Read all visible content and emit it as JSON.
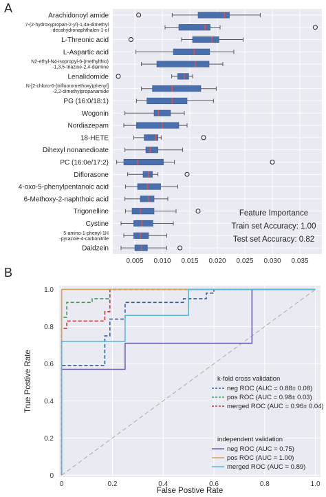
{
  "figure": {
    "panel_a_letter": "A",
    "panel_b_letter": "B"
  },
  "chart_data": [
    {
      "type": "box",
      "panel": "A",
      "orientation": "horizontal",
      "annotation_lines": [
        "Feature Importance",
        "Train set Accuracy: 1.00",
        "Test set Accuracy: 0.82"
      ],
      "xlim": [
        0.001,
        0.039
      ],
      "xticks": [
        0.005,
        0.01,
        0.015,
        0.02,
        0.025,
        0.03,
        0.035
      ],
      "xtick_labels": [
        "0.005",
        "0.010",
        "0.015",
        "0.020",
        "0.025",
        "0.030",
        "0.035"
      ],
      "grid": true,
      "box_color": "#4a6fad",
      "median_color": "#d9534f",
      "categories": [
        {
          "label": [
            "Arachidonoyl amide"
          ],
          "wmin": 0.0118,
          "q1": 0.0165,
          "median": 0.0213,
          "q3": 0.0222,
          "wmax": 0.0278,
          "outliers": [
            0.0057
          ]
        },
        {
          "label": [
            "7-(2-hydroxypropan-2-yl)-1,4a-dimethyl",
            "-decahydronaphthalen-1-ol"
          ],
          "wmin": 0.0105,
          "q1": 0.013,
          "median": 0.0178,
          "q3": 0.0187,
          "wmax": 0.0205,
          "outliers": [
            0.0378
          ]
        },
        {
          "label": [
            "L-Threonic acid"
          ],
          "wmin": 0.0135,
          "q1": 0.0155,
          "median": 0.019,
          "q3": 0.0203,
          "wmax": 0.0247,
          "outliers": [
            0.0043
          ]
        },
        {
          "label": [
            "L-Aspartic acid"
          ],
          "wmin": 0.0052,
          "q1": 0.012,
          "median": 0.0158,
          "q3": 0.0186,
          "wmax": 0.023,
          "outliers": []
        },
        {
          "label": [
            "N2-ethyl-N4-isopropyl-6-(methylthio)",
            "-1,3,5-triazine-2,4-diamine"
          ],
          "wmin": 0.0062,
          "q1": 0.009,
          "median": 0.016,
          "q3": 0.0185,
          "wmax": 0.021,
          "outliers": []
        },
        {
          "label": [
            "Lenalidomide"
          ],
          "wmin": 0.0117,
          "q1": 0.0128,
          "median": 0.014,
          "q3": 0.0148,
          "wmax": 0.0155,
          "outliers": [
            0.002
          ]
        },
        {
          "label": [
            "N-[2-chloro-6-(trifluoromethoxy)phenyl]",
            "-2,2-dimethylpropanamide"
          ],
          "wmin": 0.0062,
          "q1": 0.0082,
          "median": 0.0118,
          "q3": 0.017,
          "wmax": 0.0198,
          "outliers": []
        },
        {
          "label": [
            "PG (16:0/18:1)"
          ],
          "wmin": 0.0053,
          "q1": 0.0072,
          "median": 0.0118,
          "q3": 0.0145,
          "wmax": 0.0193,
          "outliers": []
        },
        {
          "label": [
            "Wogonin"
          ],
          "wmin": 0.0032,
          "q1": 0.0085,
          "median": 0.0093,
          "q3": 0.0115,
          "wmax": 0.014,
          "outliers": []
        },
        {
          "label": [
            "Nordiazepam"
          ],
          "wmin": 0.003,
          "q1": 0.0053,
          "median": 0.01,
          "q3": 0.013,
          "wmax": 0.0145,
          "outliers": []
        },
        {
          "label": [
            "18-HETE"
          ],
          "wmin": 0.0048,
          "q1": 0.0067,
          "median": 0.0088,
          "q3": 0.0092,
          "wmax": 0.0098,
          "outliers": [
            0.0175
          ]
        },
        {
          "label": [
            "Dihexyl nonanedioate"
          ],
          "wmin": 0.0032,
          "q1": 0.007,
          "median": 0.0078,
          "q3": 0.0092,
          "wmax": 0.0137,
          "outliers": []
        },
        {
          "label": [
            "PC (16:0e/17:2)"
          ],
          "wmin": 0.0017,
          "q1": 0.003,
          "median": 0.0055,
          "q3": 0.0102,
          "wmax": 0.0122,
          "outliers": [
            0.03
          ]
        },
        {
          "label": [
            "Diflorasone"
          ],
          "wmin": 0.0037,
          "q1": 0.0065,
          "median": 0.0075,
          "q3": 0.0082,
          "wmax": 0.0092,
          "outliers": [
            0.0145
          ]
        },
        {
          "label": [
            "4-oxo-5-phenylpentanoic acid"
          ],
          "wmin": 0.0033,
          "q1": 0.0055,
          "median": 0.0073,
          "q3": 0.0097,
          "wmax": 0.0128,
          "outliers": []
        },
        {
          "label": [
            "6-Methoxy-2-naphthoic acid"
          ],
          "wmin": 0.0032,
          "q1": 0.006,
          "median": 0.0075,
          "q3": 0.0085,
          "wmax": 0.011,
          "outliers": []
        },
        {
          "label": [
            "Trigonelline"
          ],
          "wmin": 0.0033,
          "q1": 0.0045,
          "median": 0.006,
          "q3": 0.0085,
          "wmax": 0.0125,
          "outliers": [
            0.0165
          ]
        },
        {
          "label": [
            "Cystine"
          ],
          "wmin": 0.0025,
          "q1": 0.0048,
          "median": 0.0063,
          "q3": 0.0083,
          "wmax": 0.012,
          "outliers": []
        },
        {
          "label": [
            "5-amino-1-phenyl-1H",
            "-pyrazole-4-carbonitrile"
          ],
          "wmin": 0.003,
          "q1": 0.0048,
          "median": 0.006,
          "q3": 0.0075,
          "wmax": 0.0108,
          "outliers": []
        },
        {
          "label": [
            "Daidzein"
          ],
          "wmin": 0.0025,
          "q1": 0.005,
          "median": 0.0062,
          "q3": 0.0073,
          "wmax": 0.0108,
          "outliers": [
            0.0132
          ]
        }
      ]
    },
    {
      "type": "line",
      "panel": "B",
      "xlabel": "False Postive Rate",
      "ylabel": "True Postive Rate",
      "xlim": [
        -0.01,
        1.02
      ],
      "ylim": [
        -0.01,
        1.02
      ],
      "xticks": [
        0,
        0.2,
        0.4,
        0.6,
        0.8,
        1.0
      ],
      "xtick_labels": [
        "0",
        "0.2",
        "0.4",
        "0.6",
        "0.8",
        "1.0"
      ],
      "yticks": [
        0,
        0.2,
        0.4,
        0.6,
        0.8,
        1.0
      ],
      "ytick_labels": [
        "0",
        "0.2",
        "0.4",
        "0.6",
        "0.8",
        "1.0"
      ],
      "grid": true,
      "diagonal_color": "#b5b5b5",
      "legend_groups": [
        {
          "title": "k-fold cross validation",
          "entries": [
            "neg ROC (AUC = 0.88± 0.08)",
            "pos ROC (AUC = 0.98± 0.03)",
            "merged ROC (AUC = 0.96± 0.04)"
          ]
        },
        {
          "title": "independent validation",
          "entries": [
            "neg ROC (AUC = 0.75)",
            "pos ROC (AUC = 1.00)",
            "merged ROC (AUC = 0.89)"
          ]
        }
      ],
      "series": [
        {
          "name": "neg ROC (AUC = 0.88± 0.08)",
          "style": "dashed",
          "color": "#2c5f9e",
          "x": [
            0,
            0,
            0,
            0.17,
            0.17,
            0.19,
            0.19,
            0.25,
            0.25,
            0.48,
            0.48,
            0.57,
            0.57,
            0.6,
            0.6
          ],
          "y": [
            0,
            0.55,
            0.59,
            0.59,
            0.75,
            0.75,
            0.84,
            0.84,
            0.93,
            0.93,
            0.95,
            0.95,
            0.98,
            0.98,
            1.0
          ]
        },
        {
          "name": "pos ROC (AUC = 0.98± 0.03)",
          "style": "dashed",
          "color": "#3aa04b",
          "x": [
            0,
            0,
            0.02,
            0.02,
            0.12,
            0.12,
            0.19,
            0.19,
            1.0
          ],
          "y": [
            0,
            0.85,
            0.85,
            0.93,
            0.93,
            0.95,
            0.95,
            1.0,
            1.0
          ]
        },
        {
          "name": "merged ROC (AUC = 0.96± 0.04)",
          "style": "dashed",
          "color": "#c8393a",
          "x": [
            0,
            0,
            0.02,
            0.02,
            0.17,
            0.17,
            0.19,
            0.19,
            1.0
          ],
          "y": [
            0,
            0.79,
            0.79,
            0.83,
            0.83,
            0.88,
            0.88,
            1.0,
            1.0
          ]
        },
        {
          "name": "neg ROC (AUC = 0.75)",
          "style": "solid",
          "color": "#6c5ea8",
          "x": [
            0,
            0,
            0.25,
            0.25,
            0.75,
            0.75,
            1.0
          ],
          "y": [
            0,
            0.57,
            0.57,
            0.71,
            0.71,
            1.0,
            1.0
          ]
        },
        {
          "name": "pos ROC (AUC = 1.00)",
          "style": "solid",
          "color": "#d1a45a",
          "x": [
            0,
            0,
            1.0
          ],
          "y": [
            0,
            1.0,
            1.0
          ]
        },
        {
          "name": "merged ROC (AUC = 0.89)",
          "style": "solid",
          "color": "#5ab4d6",
          "x": [
            0,
            0,
            0.25,
            0.25,
            0.5,
            0.5,
            1.0
          ],
          "y": [
            0,
            0.72,
            0.72,
            0.86,
            0.86,
            1.0,
            1.0
          ]
        }
      ]
    }
  ]
}
